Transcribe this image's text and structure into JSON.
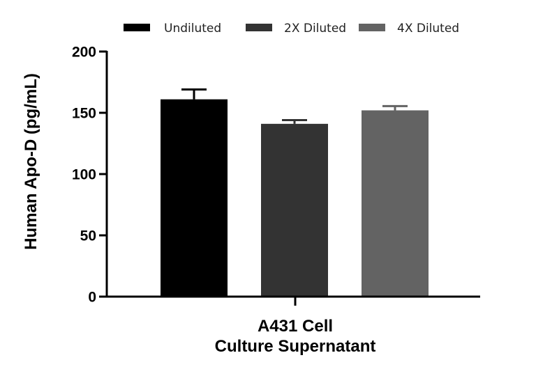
{
  "chart_data": {
    "type": "bar",
    "categories": [
      "A431 Cell Culture Supernatant"
    ],
    "xlabel_lines": [
      "A431 Cell",
      "Culture Supernatant"
    ],
    "ylabel": "Human Apo-D (pg/mL)",
    "ylim": [
      0,
      200
    ],
    "yticks": [
      0,
      50,
      100,
      150,
      200
    ],
    "series": [
      {
        "name": "Undiluted",
        "values": [
          161
        ],
        "error": [
          8
        ],
        "color": "#000000"
      },
      {
        "name": "2X Diluted",
        "values": [
          141
        ],
        "error": [
          3
        ],
        "color": "#333333"
      },
      {
        "name": "4X Diluted",
        "values": [
          152
        ],
        "error": [
          3.5
        ],
        "color": "#636363"
      }
    ]
  }
}
